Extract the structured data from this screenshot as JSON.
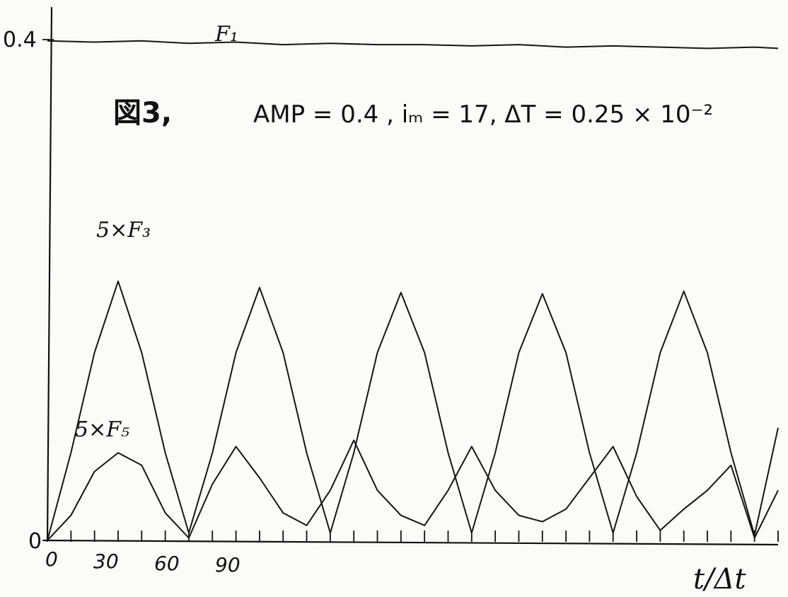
{
  "chart_data": {
    "type": "line",
    "title_glyph": "図3,",
    "title": "AMP = 0.4   ,   iₘ = 17,   ΔT = 0.25 × 10⁻²",
    "xlabel": "t/Δt",
    "ylabel": "",
    "xlim": [
      0,
      310
    ],
    "ylim": [
      0,
      0.4
    ],
    "y_tick_labels": [
      "0.4",
      "0"
    ],
    "x_tick_labels": [
      "0",
      "30",
      "60",
      "90"
    ],
    "grid": false,
    "series": [
      {
        "name": "F1",
        "label_text": "F₁",
        "x": [
          0,
          20,
          40,
          60,
          80,
          100,
          120,
          140,
          160,
          180,
          200,
          220,
          240,
          260,
          280,
          300,
          310
        ],
        "values": [
          0.399,
          0.398,
          0.399,
          0.397,
          0.398,
          0.396,
          0.397,
          0.396,
          0.396,
          0.395,
          0.396,
          0.394,
          0.395,
          0.394,
          0.393,
          0.394,
          0.393
        ]
      },
      {
        "name": "5xF3",
        "label_text": "5×F₃",
        "x": [
          0,
          10,
          20,
          30,
          40,
          50,
          60,
          70,
          80,
          90,
          100,
          110,
          120,
          130,
          140,
          150,
          160,
          170,
          180,
          190,
          200,
          210,
          220,
          230,
          240,
          250,
          260,
          270,
          280,
          290,
          300,
          310
        ],
        "values": [
          0.0,
          0.07,
          0.15,
          0.207,
          0.15,
          0.07,
          0.006,
          0.07,
          0.15,
          0.202,
          0.15,
          0.07,
          0.006,
          0.07,
          0.15,
          0.198,
          0.15,
          0.07,
          0.006,
          0.07,
          0.15,
          0.197,
          0.15,
          0.07,
          0.006,
          0.07,
          0.15,
          0.199,
          0.15,
          0.07,
          0.004,
          0.09
        ]
      },
      {
        "name": "5xF5",
        "label_text": "5×F₅",
        "x": [
          0,
          10,
          20,
          30,
          40,
          50,
          60,
          70,
          80,
          90,
          100,
          110,
          120,
          130,
          140,
          150,
          160,
          170,
          180,
          190,
          200,
          210,
          220,
          230,
          240,
          250,
          260,
          270,
          280,
          290,
          300,
          310
        ],
        "values": [
          0.0,
          0.02,
          0.055,
          0.07,
          0.06,
          0.022,
          0.002,
          0.045,
          0.075,
          0.05,
          0.022,
          0.012,
          0.04,
          0.08,
          0.04,
          0.02,
          0.012,
          0.04,
          0.075,
          0.04,
          0.02,
          0.015,
          0.025,
          0.05,
          0.075,
          0.035,
          0.008,
          0.025,
          0.04,
          0.06,
          0.002,
          0.04
        ]
      }
    ]
  }
}
